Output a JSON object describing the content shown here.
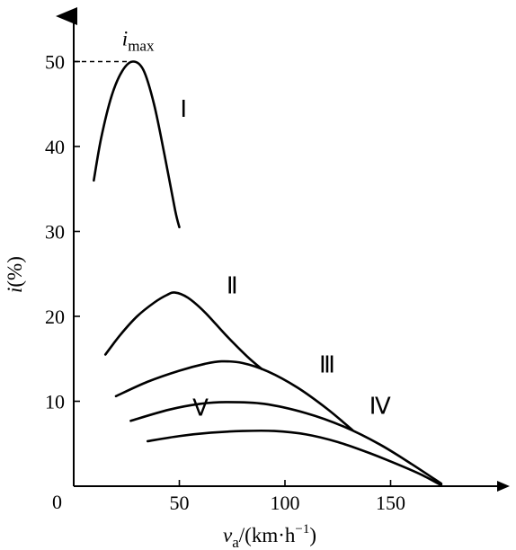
{
  "chart_data": {
    "type": "line",
    "xlabel": {
      "var": "v",
      "sub": "a",
      "rest": "/(km·h",
      "sup": "−1",
      "close": ")"
    },
    "ylabel": {
      "var": "i",
      "rest": "(%)"
    },
    "origin_label": "0",
    "xlim": [
      0,
      185
    ],
    "ylim": [
      0,
      57
    ],
    "xticks": [
      50,
      100,
      150
    ],
    "yticks": [
      10,
      20,
      30,
      40,
      50
    ],
    "max_annotation": {
      "var": "i",
      "sub": "max",
      "y": 50,
      "x": 28
    },
    "series": [
      {
        "name": "Ⅰ",
        "points": [
          [
            9.5,
            36
          ],
          [
            13,
            41
          ],
          [
            18,
            46
          ],
          [
            23,
            48.9
          ],
          [
            28,
            50
          ],
          [
            33,
            49
          ],
          [
            38,
            45
          ],
          [
            43,
            39
          ],
          [
            48,
            32.5
          ],
          [
            50,
            30.5
          ]
        ],
        "label_at": [
          52,
          43.5
        ]
      },
      {
        "name": "Ⅱ",
        "points": [
          [
            15,
            15.5
          ],
          [
            22,
            17.8
          ],
          [
            30,
            20
          ],
          [
            38,
            21.6
          ],
          [
            44,
            22.5
          ],
          [
            48,
            22.8
          ],
          [
            54,
            22.2
          ],
          [
            62,
            20.5
          ],
          [
            72,
            17.8
          ],
          [
            82,
            15.3
          ],
          [
            89,
            13.8
          ]
        ],
        "label_at": [
          75,
          22.7
        ]
      },
      {
        "name": "Ⅲ",
        "points": [
          [
            20,
            10.6
          ],
          [
            35,
            12.3
          ],
          [
            50,
            13.6
          ],
          [
            62,
            14.4
          ],
          [
            70,
            14.7
          ],
          [
            80,
            14.5
          ],
          [
            92,
            13.5
          ],
          [
            106,
            11.6
          ],
          [
            120,
            9.1
          ],
          [
            132,
            6.6
          ]
        ],
        "label_at": [
          120,
          13.4
        ]
      },
      {
        "name": "Ⅳ",
        "points": [
          [
            27,
            7.7
          ],
          [
            45,
            9
          ],
          [
            60,
            9.7
          ],
          [
            72,
            9.9
          ],
          [
            90,
            9.7
          ],
          [
            110,
            8.6
          ],
          [
            128,
            7
          ],
          [
            145,
            4.9
          ],
          [
            160,
            2.6
          ],
          [
            174,
            0.3
          ]
        ],
        "label_at": [
          145,
          8.5
        ]
      },
      {
        "name": "Ⅴ",
        "points": [
          [
            35,
            5.3
          ],
          [
            50,
            5.9
          ],
          [
            65,
            6.3
          ],
          [
            80,
            6.5
          ],
          [
            95,
            6.5
          ],
          [
            110,
            6.1
          ],
          [
            125,
            5.2
          ],
          [
            140,
            3.9
          ],
          [
            155,
            2.4
          ],
          [
            165,
            1.3
          ],
          [
            174,
            0.1
          ]
        ],
        "label_at": [
          60,
          8.3
        ]
      }
    ]
  }
}
